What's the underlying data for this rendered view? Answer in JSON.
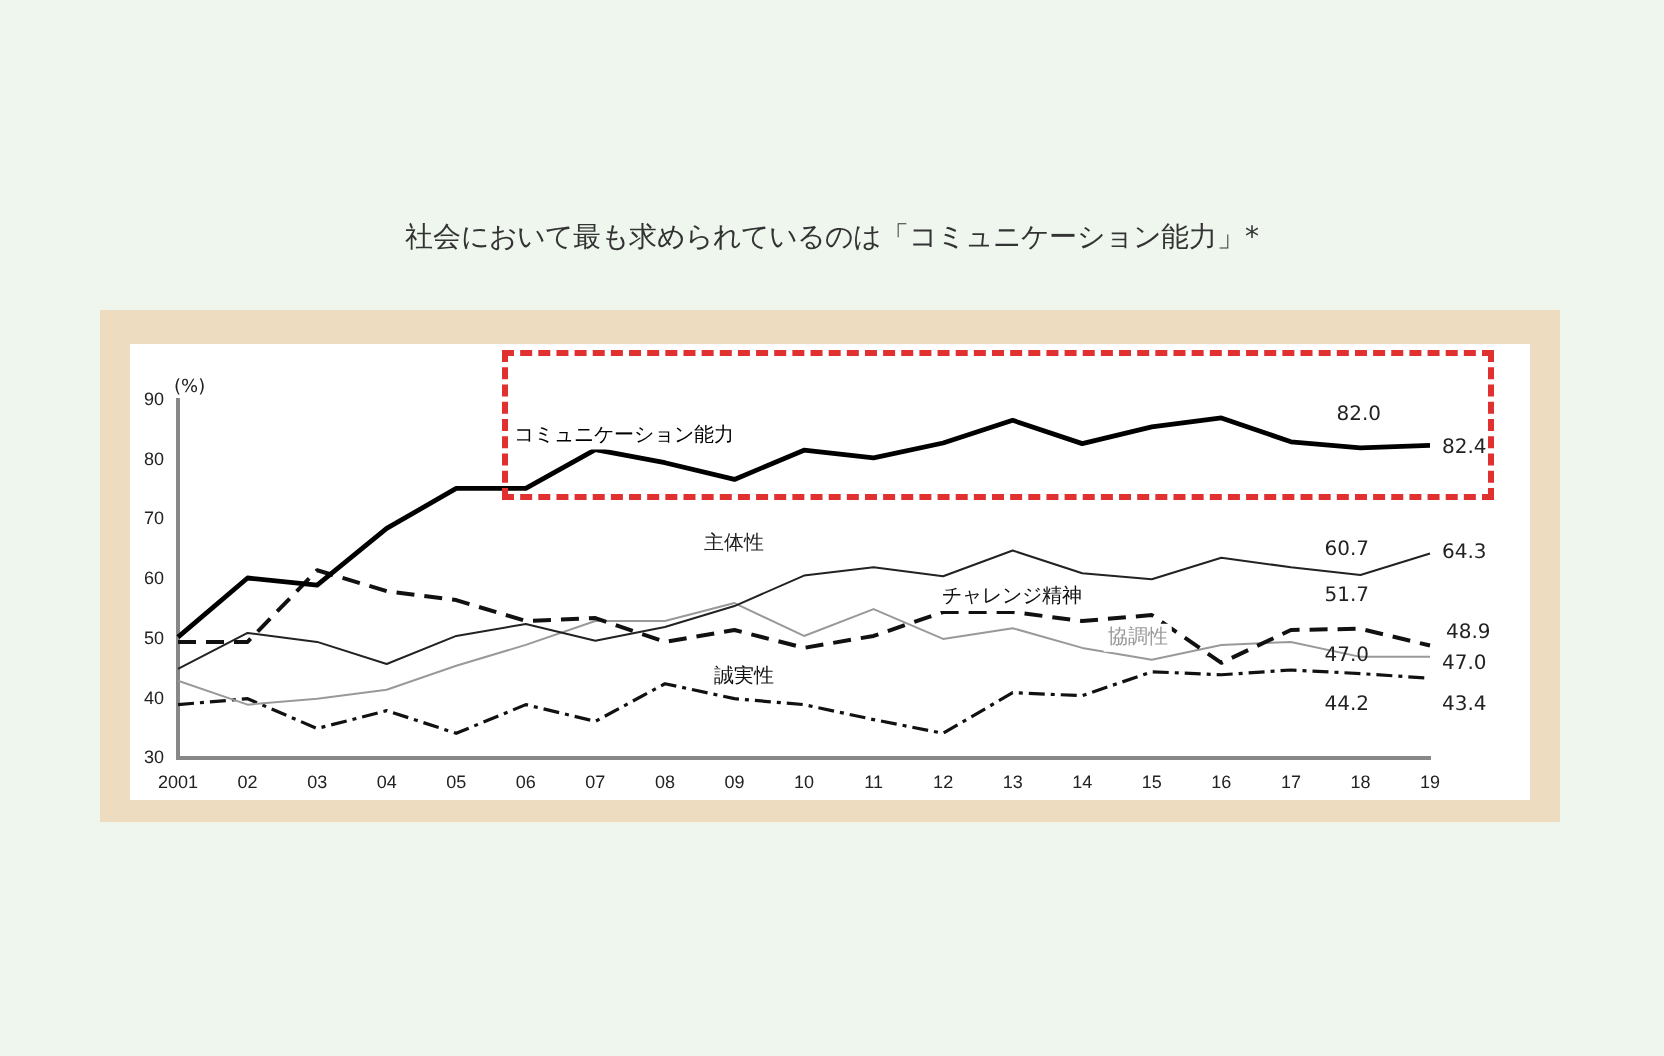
{
  "chart_data": {
    "type": "line",
    "title": "社会において最も求められているのは「コミュニケーション能力」*",
    "ylabel": "(%)",
    "categories": [
      "2001",
      "02",
      "03",
      "04",
      "05",
      "06",
      "07",
      "08",
      "09",
      "10",
      "11",
      "12",
      "13",
      "14",
      "15",
      "16",
      "17",
      "18",
      "19"
    ],
    "ylim": [
      30,
      90
    ],
    "yticks": [
      30,
      40,
      50,
      60,
      70,
      80,
      90
    ],
    "grid": false,
    "legend": false,
    "marker": "none",
    "series": [
      {
        "name": "コミュニケーション能力",
        "color": "#000000",
        "line_style": "solid",
        "values": [
          50.3,
          60.2,
          59,
          68.5,
          75.2,
          75.2,
          81.7,
          79.5,
          76.7,
          81.6,
          80.3,
          82.8,
          86.6,
          82.7,
          85.5,
          87,
          83,
          82.0,
          82.4
        ],
        "value_labels": [
          null,
          null,
          null,
          null,
          null,
          null,
          null,
          null,
          null,
          null,
          null,
          null,
          null,
          null,
          null,
          null,
          null,
          "82.0",
          "82.4"
        ]
      },
      {
        "name": "主体性",
        "color": "#222222",
        "line_style": "solid",
        "values": [
          45,
          51,
          49.5,
          45.8,
          50.5,
          52.5,
          49.7,
          52,
          55.5,
          60.6,
          62,
          60.5,
          64.8,
          61,
          60,
          63.6,
          62,
          60.7,
          64.3
        ],
        "value_labels": [
          null,
          null,
          null,
          null,
          null,
          null,
          null,
          null,
          null,
          null,
          null,
          null,
          null,
          null,
          null,
          null,
          null,
          "60.7",
          "64.3"
        ]
      },
      {
        "name": "チャレンジ精神",
        "color": "#111111",
        "line_style": "dashed",
        "values": [
          49.5,
          49.5,
          61.5,
          58,
          56.5,
          53,
          53.5,
          49.5,
          51.5,
          48.5,
          50.5,
          54.5,
          54.5,
          53,
          54,
          46,
          51.5,
          51.7,
          48.9
        ],
        "value_labels": [
          null,
          null,
          null,
          null,
          null,
          null,
          null,
          null,
          null,
          null,
          null,
          null,
          null,
          null,
          null,
          null,
          null,
          "51.7",
          "48.9"
        ]
      },
      {
        "name": "協調性",
        "color": "#999999",
        "line_style": "solid",
        "values": [
          43,
          39,
          40,
          41.5,
          45.5,
          49,
          53,
          53,
          56,
          50.5,
          55,
          50,
          51.8,
          48.5,
          46.5,
          49,
          49.5,
          47.0,
          47.0
        ],
        "value_labels": [
          null,
          null,
          null,
          null,
          null,
          null,
          null,
          null,
          null,
          null,
          null,
          null,
          null,
          null,
          null,
          null,
          null,
          "47.0",
          "47.0"
        ]
      },
      {
        "name": "誠実性",
        "color": "#111111",
        "line_style": "dotted",
        "values": [
          39,
          40,
          35,
          38,
          34.2,
          39,
          36.2,
          42.5,
          40,
          39,
          36.5,
          34.2,
          41,
          40.5,
          44.5,
          44,
          44.8,
          44.2,
          43.4
        ],
        "value_labels": [
          null,
          null,
          null,
          null,
          null,
          null,
          null,
          null,
          null,
          null,
          null,
          null,
          null,
          null,
          null,
          null,
          null,
          "44.2",
          "43.4"
        ]
      }
    ]
  }
}
